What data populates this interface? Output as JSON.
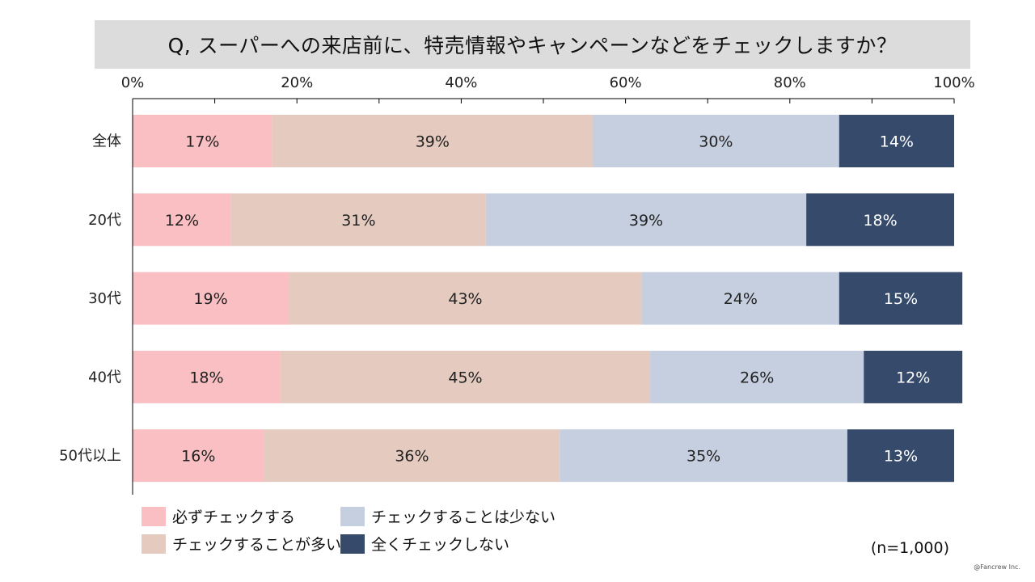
{
  "title": "Q, スーパーへの来店前に、特売情報やキャンペーンなどをチェックしますか？",
  "sample_size": "(n=1,000)",
  "credit": "@Fancrew Inc.",
  "colors": {
    "series": [
      "#f9bfc2",
      "#e5cbbf",
      "#c5cfe0",
      "#364b6b"
    ],
    "label_on_light": "#222222",
    "label_on_dark": "#ffffff",
    "axis": "#000000"
  },
  "chart_data": {
    "type": "bar",
    "orientation": "horizontal",
    "stacked": true,
    "percent_stacked": true,
    "title": "Q, スーパーへの来店前に、特売情報やキャンペーンなどをチェックしますか？",
    "categories": [
      "全体",
      "20代",
      "30代",
      "40代",
      "50代以上"
    ],
    "series": [
      {
        "name": "必ずチェックする",
        "values": [
          17,
          12,
          19,
          18,
          16
        ]
      },
      {
        "name": "チェックすることが多い",
        "values": [
          39,
          31,
          43,
          45,
          36
        ]
      },
      {
        "name": "チェックすることは少ない",
        "values": [
          30,
          39,
          24,
          26,
          35
        ]
      },
      {
        "name": "全くチェックしない",
        "values": [
          14,
          18,
          15,
          12,
          13
        ]
      }
    ],
    "x_ticks": [
      "0%",
      "20%",
      "40%",
      "60%",
      "80%",
      "100%"
    ],
    "xlim": [
      0,
      100
    ],
    "axis_position": "top",
    "legend_position": "bottom-left",
    "grid": false
  }
}
